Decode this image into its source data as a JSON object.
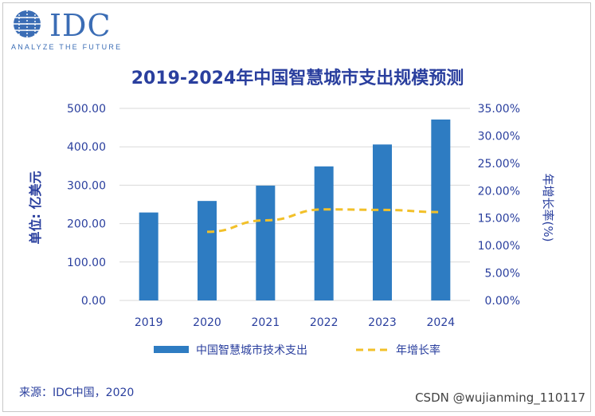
{
  "logo": {
    "text": "IDC",
    "tagline": "ANALYZE THE FUTURE",
    "icon": "globe-icon",
    "color": "#3b6db5"
  },
  "source": "来源：IDC中国，2020",
  "watermark": "CSDN @wujianming_110117",
  "colors": {
    "bar": "#2e7cc2",
    "line": "#f2c029",
    "text": "#2a3f9e",
    "grid": "#d9d9d9"
  },
  "chart_data": {
    "type": "bar",
    "title": "2019-2024年中国智慧城市支出规模预测",
    "categories": [
      "2019",
      "2020",
      "2021",
      "2022",
      "2023",
      "2024"
    ],
    "series": [
      {
        "name": "中国智慧城市技术支出",
        "type": "bar",
        "axis": "left",
        "values": [
          229,
          259,
          299,
          349,
          406,
          471
        ]
      },
      {
        "name": "年增长率",
        "type": "line",
        "style": "dashed",
        "axis": "right",
        "values": [
          null,
          12.5,
          14.6,
          16.6,
          16.5,
          16.1
        ]
      }
    ],
    "ylabel": "单位: 亿美元",
    "y2label": "年增长率(%)",
    "ylim": [
      0,
      500
    ],
    "y2lim": [
      0,
      35
    ],
    "yticks": [
      "0.00",
      "100.00",
      "200.00",
      "300.00",
      "400.00",
      "500.00"
    ],
    "y2ticks": [
      "0.00%",
      "5.00%",
      "10.00%",
      "15.00%",
      "20.00%",
      "25.00%",
      "30.00%",
      "35.00%"
    ],
    "grid": true,
    "legend": "bottom"
  }
}
